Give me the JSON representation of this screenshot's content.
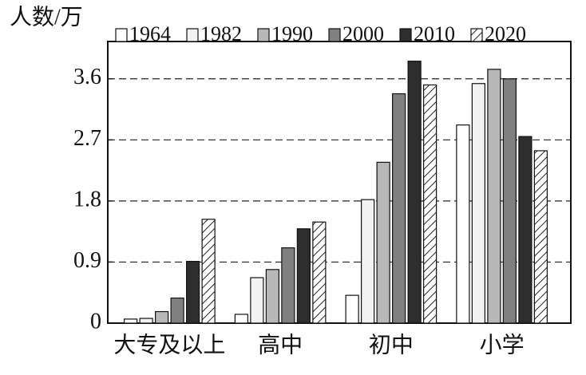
{
  "chart_data": {
    "type": "bar",
    "y_label": "人数/万",
    "categories": [
      "大专及以上",
      "高中",
      "初中",
      "小学"
    ],
    "series": [
      {
        "name": "1964",
        "color": "#ffffff",
        "values": [
          0.06,
          0.13,
          0.41,
          2.92
        ]
      },
      {
        "name": "1982",
        "color": "#f2f2f2",
        "values": [
          0.07,
          0.67,
          1.82,
          3.53
        ]
      },
      {
        "name": "1990",
        "color": "#b8b8b8",
        "values": [
          0.17,
          0.79,
          2.37,
          3.74
        ]
      },
      {
        "name": "2000",
        "color": "#808080",
        "values": [
          0.37,
          1.11,
          3.38,
          3.6
        ]
      },
      {
        "name": "2010",
        "color": "#2e2e2e",
        "values": [
          0.91,
          1.39,
          3.86,
          2.75
        ]
      },
      {
        "name": "2020",
        "color": "#ffffff",
        "hatch": true,
        "values": [
          1.53,
          1.49,
          3.51,
          2.54
        ]
      }
    ],
    "ylim": [
      0,
      4.15
    ],
    "yticks": [
      0,
      0.9,
      1.8,
      2.7,
      3.6
    ],
    "grid": true,
    "legend": "top"
  }
}
